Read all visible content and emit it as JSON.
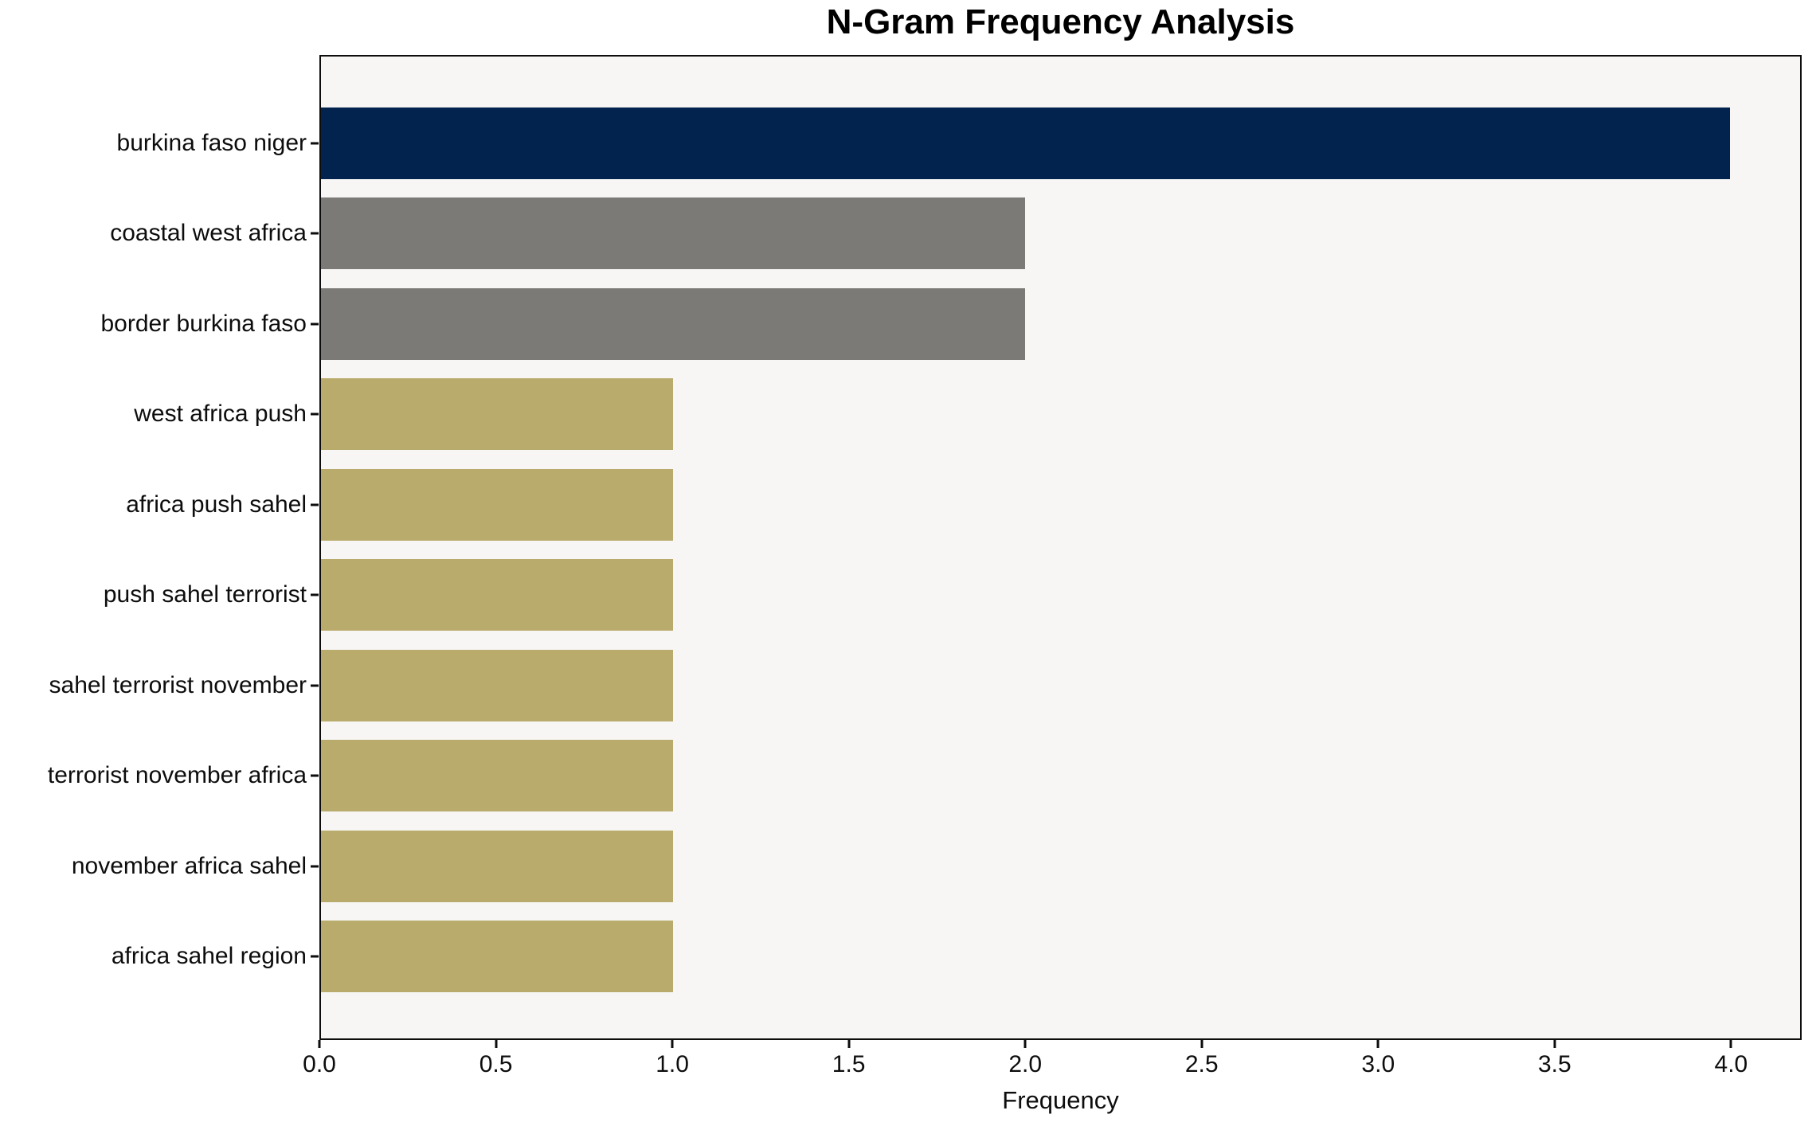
{
  "chart_data": {
    "type": "bar",
    "orientation": "horizontal",
    "title": "N-Gram Frequency Analysis",
    "xlabel": "Frequency",
    "ylabel": "",
    "categories": [
      "burkina faso niger",
      "coastal west africa",
      "border burkina faso",
      "west africa push",
      "africa push sahel",
      "push sahel terrorist",
      "sahel terrorist november",
      "terrorist november africa",
      "november africa sahel",
      "africa sahel region"
    ],
    "values": [
      4,
      2,
      2,
      1,
      1,
      1,
      1,
      1,
      1,
      1
    ],
    "bar_colors": [
      "#02234d",
      "#7b7a76",
      "#7b7a76",
      "#b8ab6b",
      "#b8ab6b",
      "#b8ab6b",
      "#b8ab6b",
      "#b8ab6b",
      "#b8ab6b",
      "#b8ab6b"
    ],
    "xlim": [
      0,
      4.2
    ],
    "xticks": [
      "0.0",
      "0.5",
      "1.0",
      "1.5",
      "2.0",
      "2.5",
      "3.0",
      "3.5",
      "4.0"
    ],
    "xtick_values": [
      0,
      0.5,
      1,
      1.5,
      2,
      2.5,
      3,
      3.5,
      4
    ],
    "grid": false,
    "legend": null,
    "plot_background": "#f7f6f5",
    "figure_background": "#ffffff",
    "colors": {
      "highlight": "#02234d",
      "secondary": "#7b7a76",
      "base": "#b8ab6b",
      "axis": "#0d0d0d"
    }
  }
}
